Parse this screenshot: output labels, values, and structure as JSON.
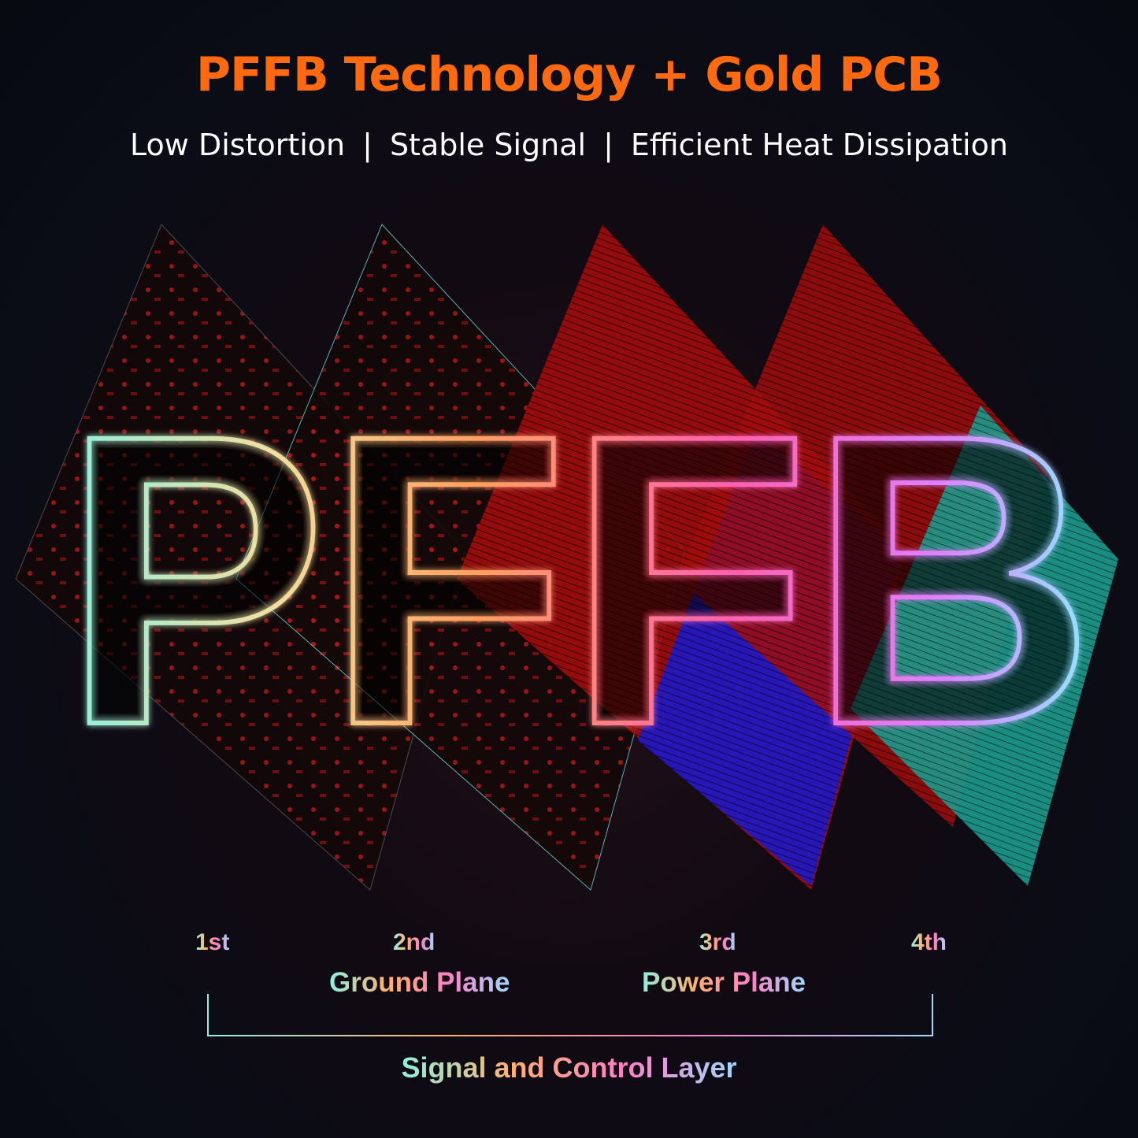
{
  "header": {
    "title": "PFFB Technology + Gold PCB",
    "features": [
      "Low Distortion",
      "Stable Signal",
      "Efficient Heat Dissipation"
    ],
    "separator": "|"
  },
  "hero": {
    "word": "PFFB"
  },
  "layers": {
    "ordinals": [
      "1st",
      "2nd",
      "3rd",
      "4th"
    ],
    "planes": [
      "Ground Plane",
      "Power Plane"
    ],
    "bracket_label": "Signal and Control Layer"
  },
  "colors": {
    "title": "#ff6a10",
    "board_red": "#b01010",
    "board_blue": "#1a16c0",
    "board_teal": "#1a9a8a",
    "background": "#0a0c14"
  }
}
